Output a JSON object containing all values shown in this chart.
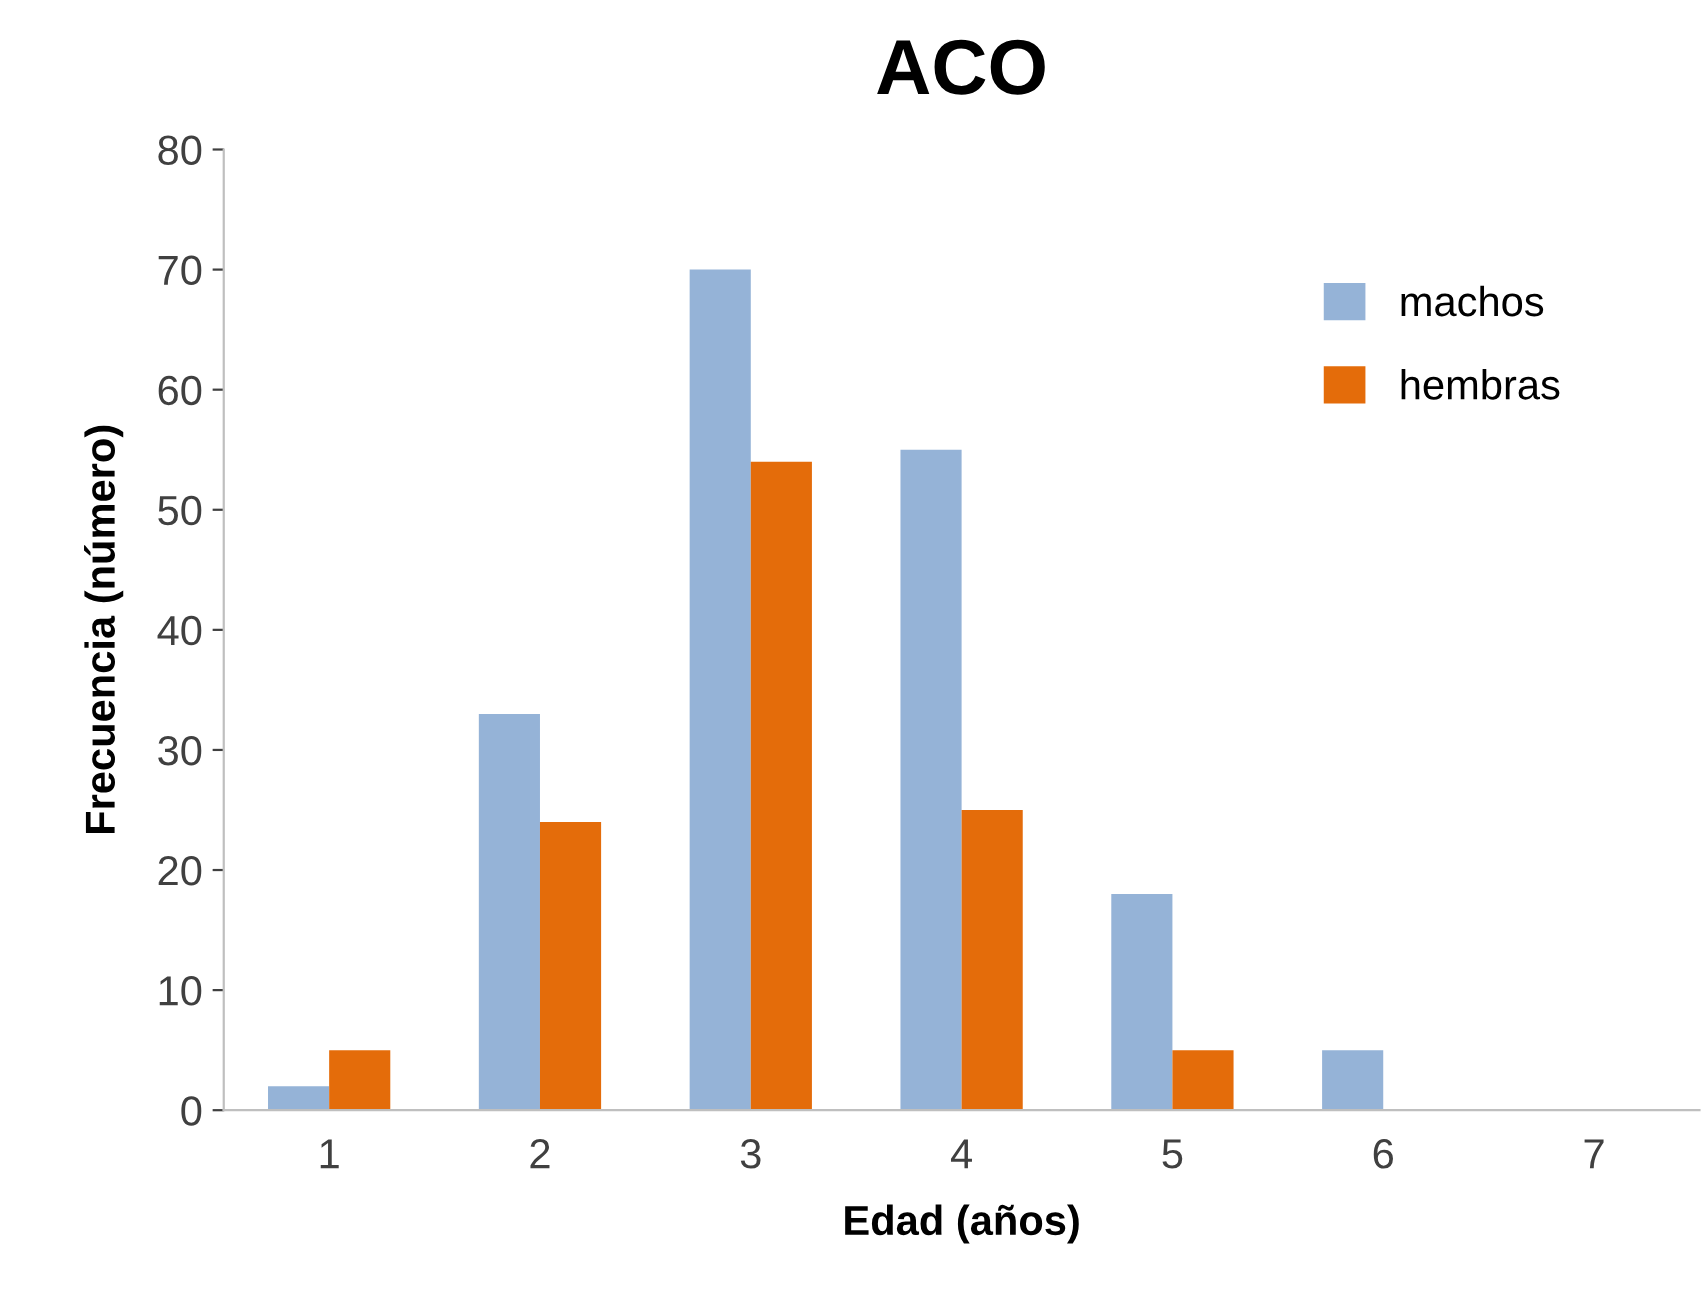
{
  "chart_data": {
    "type": "bar",
    "title": "ACO",
    "xlabel": "Edad (años)",
    "ylabel": "Frecuencia (número)",
    "categories": [
      "1",
      "2",
      "3",
      "4",
      "5",
      "6",
      "7"
    ],
    "series": [
      {
        "name": "machos",
        "color": "#95b3d7",
        "values": [
          2,
          33,
          70,
          55,
          18,
          5,
          0
        ]
      },
      {
        "name": "hembras",
        "color": "#e46c0a",
        "values": [
          5,
          24,
          54,
          25,
          5,
          0,
          0
        ]
      }
    ],
    "ylim": [
      0,
      80
    ],
    "yticks": [
      0,
      10,
      20,
      30,
      40,
      50,
      60,
      70,
      80
    ],
    "grid": false,
    "legend": "top right"
  }
}
